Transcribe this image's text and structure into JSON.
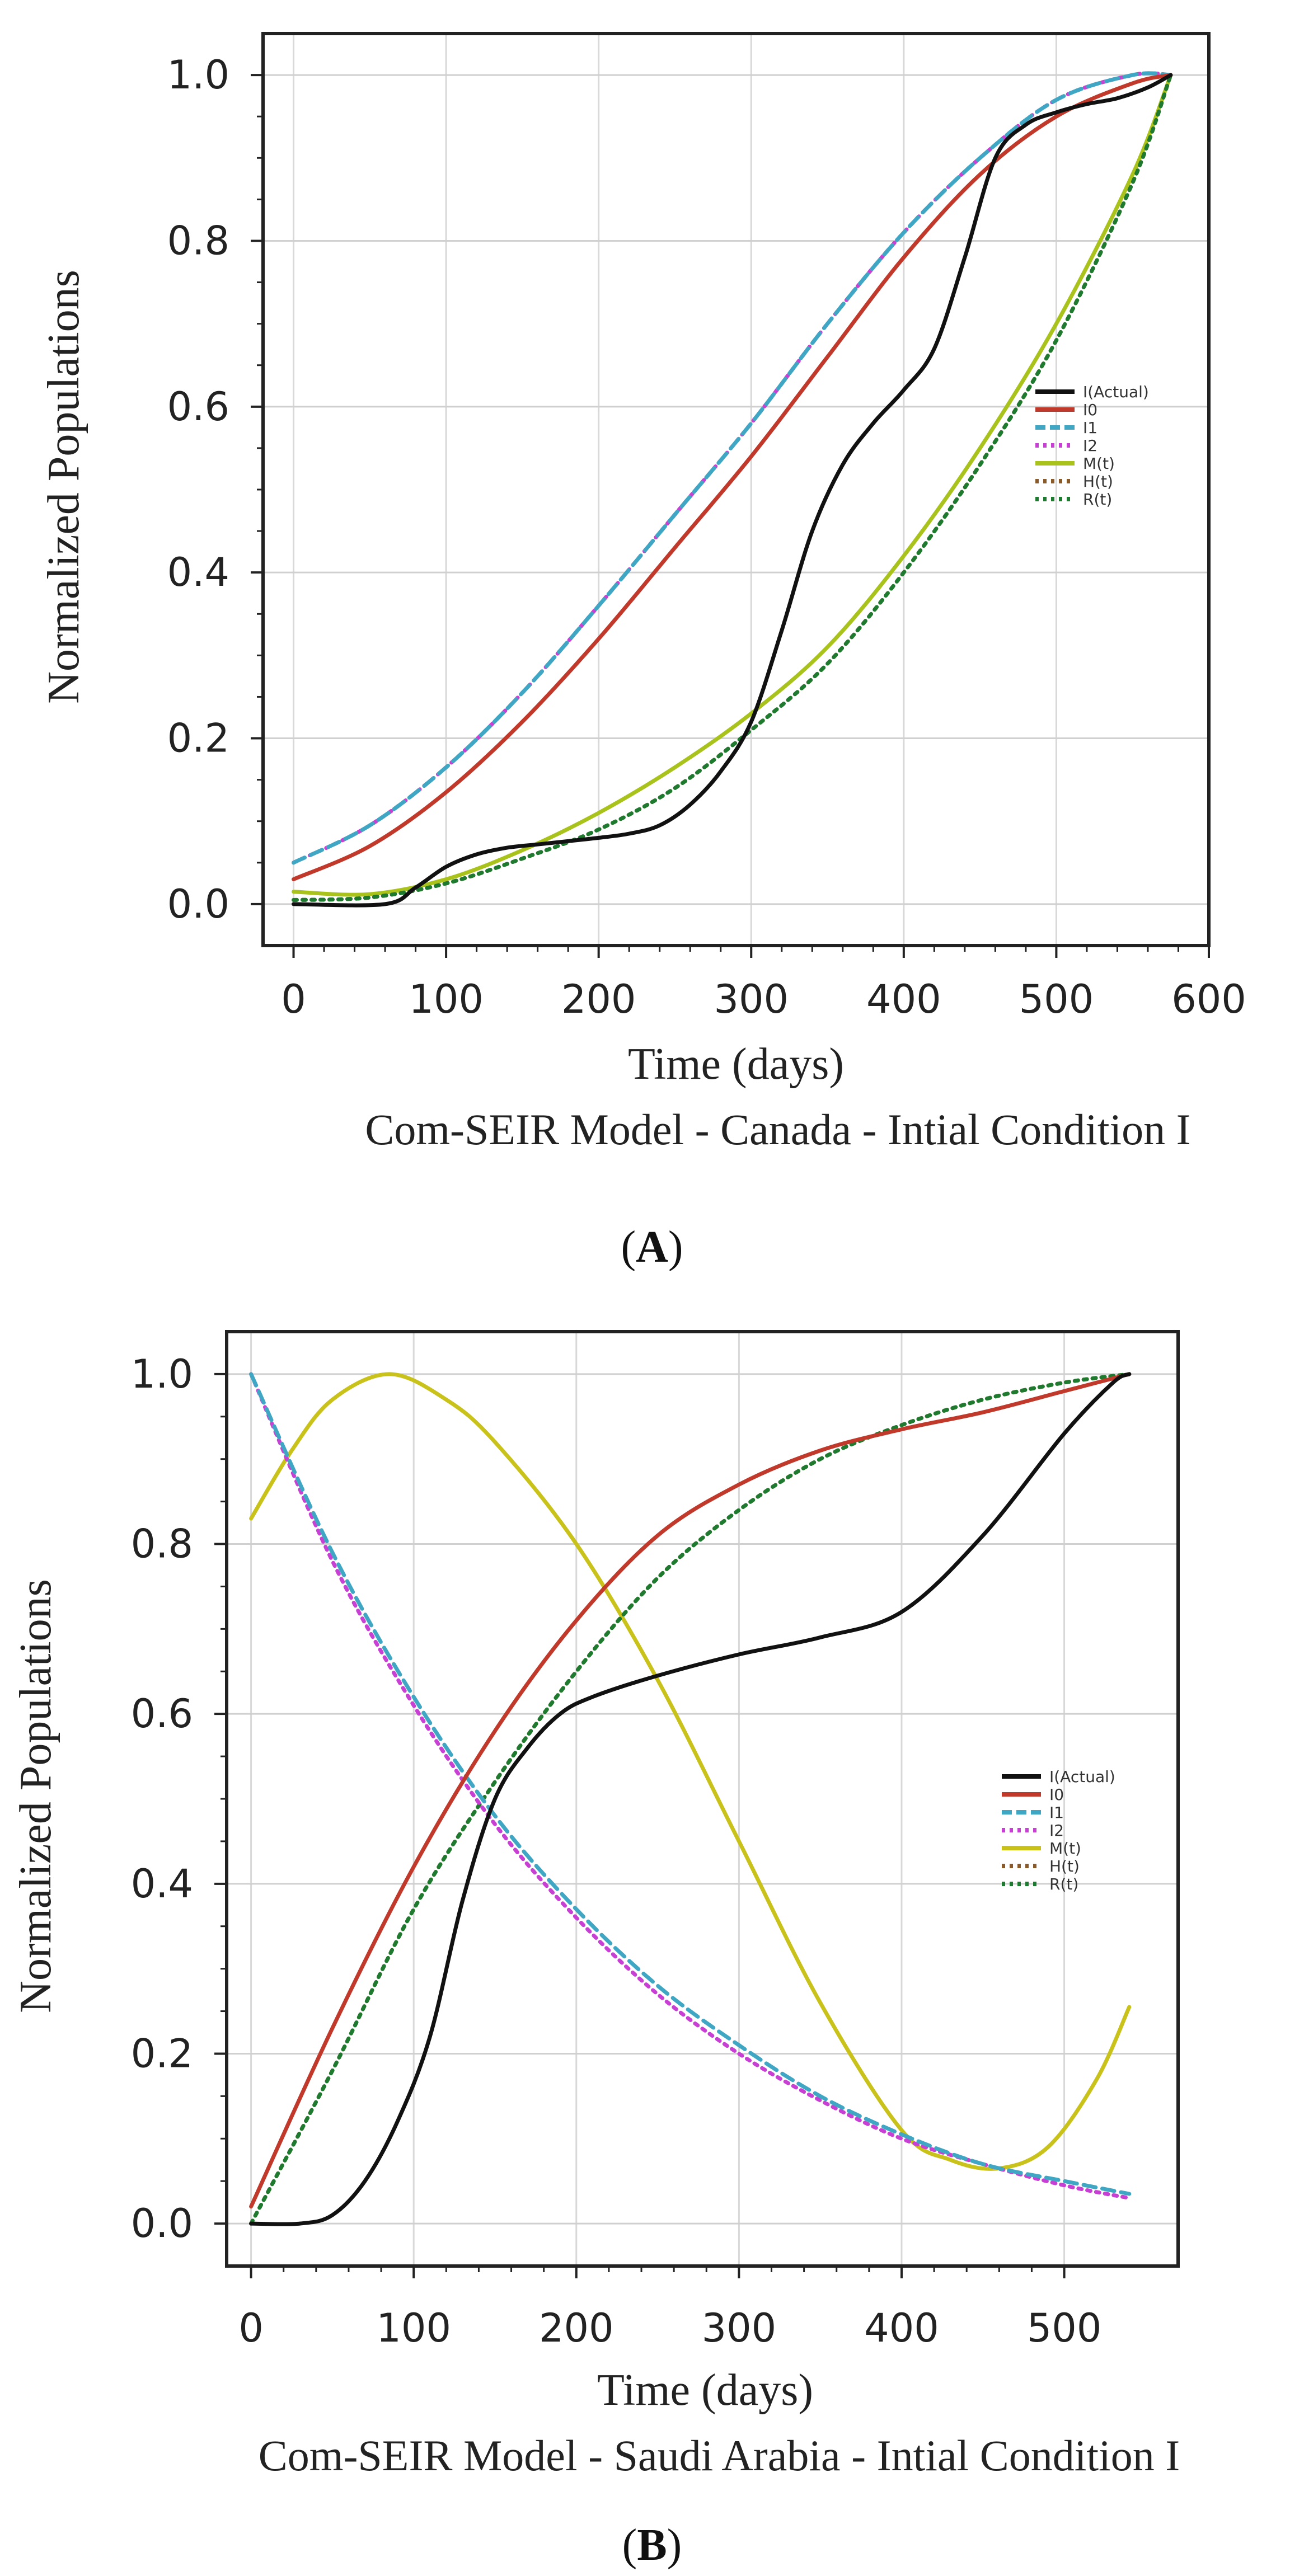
{
  "chart_data": [
    {
      "type": "line",
      "panel_label": "A",
      "caption": "Com-SEIR Model - Canada - Intial Condition I",
      "xlabel": "Time (days)",
      "ylabel": "Normalized Populations",
      "xlim": [
        -20,
        600
      ],
      "ylim": [
        -0.05,
        1.05
      ],
      "xticks": [
        0,
        100,
        200,
        300,
        400,
        500,
        600
      ],
      "yticks": [
        0.0,
        0.2,
        0.4,
        0.6,
        0.8,
        1.0
      ],
      "ytick_labels": [
        "0.0",
        "0.2",
        "0.4",
        "0.6",
        "0.8",
        "1.0"
      ],
      "grid": true,
      "legend_position": "center-right",
      "series": [
        {
          "name": "I(Actual)",
          "color": "#111111",
          "style": "solid",
          "x": [
            0,
            60,
            80,
            100,
            120,
            140,
            160,
            180,
            200,
            220,
            240,
            260,
            280,
            300,
            320,
            340,
            360,
            380,
            400,
            420,
            440,
            460,
            480,
            500,
            520,
            540,
            560,
            575
          ],
          "y": [
            0.0,
            0.0,
            0.02,
            0.045,
            0.06,
            0.068,
            0.072,
            0.076,
            0.08,
            0.085,
            0.095,
            0.12,
            0.16,
            0.22,
            0.33,
            0.45,
            0.53,
            0.58,
            0.62,
            0.67,
            0.78,
            0.9,
            0.94,
            0.955,
            0.965,
            0.972,
            0.985,
            1.0
          ]
        },
        {
          "name": "I0",
          "color": "#c0392b",
          "style": "solid",
          "x": [
            0,
            50,
            100,
            150,
            200,
            250,
            300,
            350,
            400,
            450,
            500,
            550,
            575
          ],
          "y": [
            0.03,
            0.07,
            0.135,
            0.22,
            0.32,
            0.43,
            0.54,
            0.66,
            0.78,
            0.88,
            0.95,
            0.99,
            1.0
          ]
        },
        {
          "name": "I1",
          "color": "#3fa7c4",
          "style": "dashed",
          "x": [
            0,
            50,
            100,
            150,
            200,
            250,
            300,
            350,
            400,
            450,
            500,
            550,
            575
          ],
          "y": [
            0.05,
            0.095,
            0.165,
            0.255,
            0.36,
            0.47,
            0.58,
            0.7,
            0.81,
            0.9,
            0.97,
            1.0,
            1.0
          ]
        },
        {
          "name": "I2",
          "color": "#c83fd4",
          "style": "dotted",
          "x": [
            0,
            50,
            100,
            150,
            200,
            250,
            300,
            350,
            400,
            450,
            500,
            550,
            575
          ],
          "y": [
            0.05,
            0.095,
            0.165,
            0.255,
            0.36,
            0.47,
            0.58,
            0.7,
            0.81,
            0.9,
            0.97,
            1.0,
            1.0
          ]
        },
        {
          "name": "M(t)",
          "color": "#a9c21c",
          "style": "solid",
          "x": [
            0,
            50,
            100,
            150,
            200,
            250,
            300,
            350,
            400,
            450,
            500,
            550,
            575
          ],
          "y": [
            0.015,
            0.012,
            0.03,
            0.065,
            0.11,
            0.165,
            0.23,
            0.31,
            0.42,
            0.55,
            0.7,
            0.88,
            1.0
          ]
        },
        {
          "name": "H(t)",
          "color": "#8b5a2b",
          "style": "dotted",
          "x": [
            0,
            50,
            100,
            150,
            200,
            250,
            300,
            350,
            400,
            450,
            500,
            550,
            575
          ],
          "y": [
            0.005,
            0.008,
            0.025,
            0.055,
            0.09,
            0.14,
            0.21,
            0.29,
            0.4,
            0.53,
            0.68,
            0.87,
            1.0
          ]
        },
        {
          "name": "R(t)",
          "color": "#1e7a2e",
          "style": "dotted",
          "x": [
            0,
            50,
            100,
            150,
            200,
            250,
            300,
            350,
            400,
            450,
            500,
            550,
            575
          ],
          "y": [
            0.005,
            0.008,
            0.025,
            0.055,
            0.09,
            0.14,
            0.21,
            0.29,
            0.4,
            0.53,
            0.68,
            0.87,
            1.0
          ]
        }
      ]
    },
    {
      "type": "line",
      "panel_label": "B",
      "caption": "Com-SEIR Model - Saudi Arabia - Intial Condition I",
      "xlabel": "Time (days)",
      "ylabel": "Normalized Populations",
      "xlim": [
        -15,
        570
      ],
      "ylim": [
        -0.05,
        1.05
      ],
      "xticks": [
        0,
        100,
        200,
        300,
        400,
        500
      ],
      "yticks": [
        0.0,
        0.2,
        0.4,
        0.6,
        0.8,
        1.0
      ],
      "ytick_labels": [
        "0.0",
        "0.2",
        "0.4",
        "0.6",
        "0.8",
        "1.0"
      ],
      "grid": true,
      "legend_position": "center-right",
      "series": [
        {
          "name": "I(Actual)",
          "color": "#111111",
          "style": "solid",
          "x": [
            0,
            30,
            50,
            70,
            90,
            110,
            130,
            150,
            170,
            190,
            210,
            250,
            300,
            350,
            400,
            450,
            500,
            530,
            540
          ],
          "y": [
            0.0,
            0.0,
            0.01,
            0.05,
            0.12,
            0.22,
            0.38,
            0.5,
            0.56,
            0.6,
            0.62,
            0.645,
            0.67,
            0.69,
            0.72,
            0.81,
            0.93,
            0.99,
            1.0
          ]
        },
        {
          "name": "I0",
          "color": "#c0392b",
          "style": "solid",
          "x": [
            0,
            50,
            100,
            150,
            200,
            250,
            300,
            350,
            400,
            450,
            500,
            540
          ],
          "y": [
            0.02,
            0.23,
            0.42,
            0.58,
            0.71,
            0.81,
            0.87,
            0.91,
            0.935,
            0.955,
            0.98,
            1.0
          ]
        },
        {
          "name": "I1",
          "color": "#3fa7c4",
          "style": "dashed",
          "x": [
            0,
            50,
            100,
            150,
            200,
            250,
            300,
            350,
            400,
            450,
            500,
            540
          ],
          "y": [
            1.0,
            0.79,
            0.62,
            0.48,
            0.37,
            0.28,
            0.21,
            0.15,
            0.105,
            0.07,
            0.05,
            0.035
          ]
        },
        {
          "name": "I2",
          "color": "#c83fd4",
          "style": "dotted",
          "x": [
            0,
            50,
            100,
            150,
            200,
            250,
            300,
            350,
            400,
            450,
            500,
            540
          ],
          "y": [
            1.0,
            0.78,
            0.61,
            0.47,
            0.36,
            0.27,
            0.2,
            0.145,
            0.1,
            0.07,
            0.045,
            0.03
          ]
        },
        {
          "name": "M(t)",
          "color": "#c9c21a",
          "style": "solid",
          "x": [
            0,
            25,
            50,
            85,
            120,
            150,
            200,
            250,
            300,
            350,
            400,
            430,
            460,
            490,
            520,
            540
          ],
          "y": [
            0.83,
            0.91,
            0.97,
            1.0,
            0.97,
            0.92,
            0.8,
            0.64,
            0.45,
            0.26,
            0.11,
            0.075,
            0.065,
            0.09,
            0.17,
            0.255
          ]
        },
        {
          "name": "H(t)",
          "color": "#8b5a2b",
          "style": "dotted",
          "x": [
            0,
            50,
            100,
            150,
            200,
            250,
            300,
            350,
            400,
            450,
            500,
            540
          ],
          "y": [
            0.0,
            0.18,
            0.37,
            0.52,
            0.65,
            0.76,
            0.84,
            0.9,
            0.94,
            0.97,
            0.99,
            1.0
          ]
        },
        {
          "name": "R(t)",
          "color": "#1e7a2e",
          "style": "dotted",
          "x": [
            0,
            50,
            100,
            150,
            200,
            250,
            300,
            350,
            400,
            450,
            500,
            540
          ],
          "y": [
            0.0,
            0.18,
            0.37,
            0.52,
            0.65,
            0.76,
            0.84,
            0.9,
            0.94,
            0.97,
            0.99,
            1.0
          ]
        }
      ]
    }
  ],
  "legend_labels": [
    "I(Actual)",
    "I0",
    "I1",
    "I2",
    "M(t)",
    "H(t)",
    "R(t)"
  ]
}
